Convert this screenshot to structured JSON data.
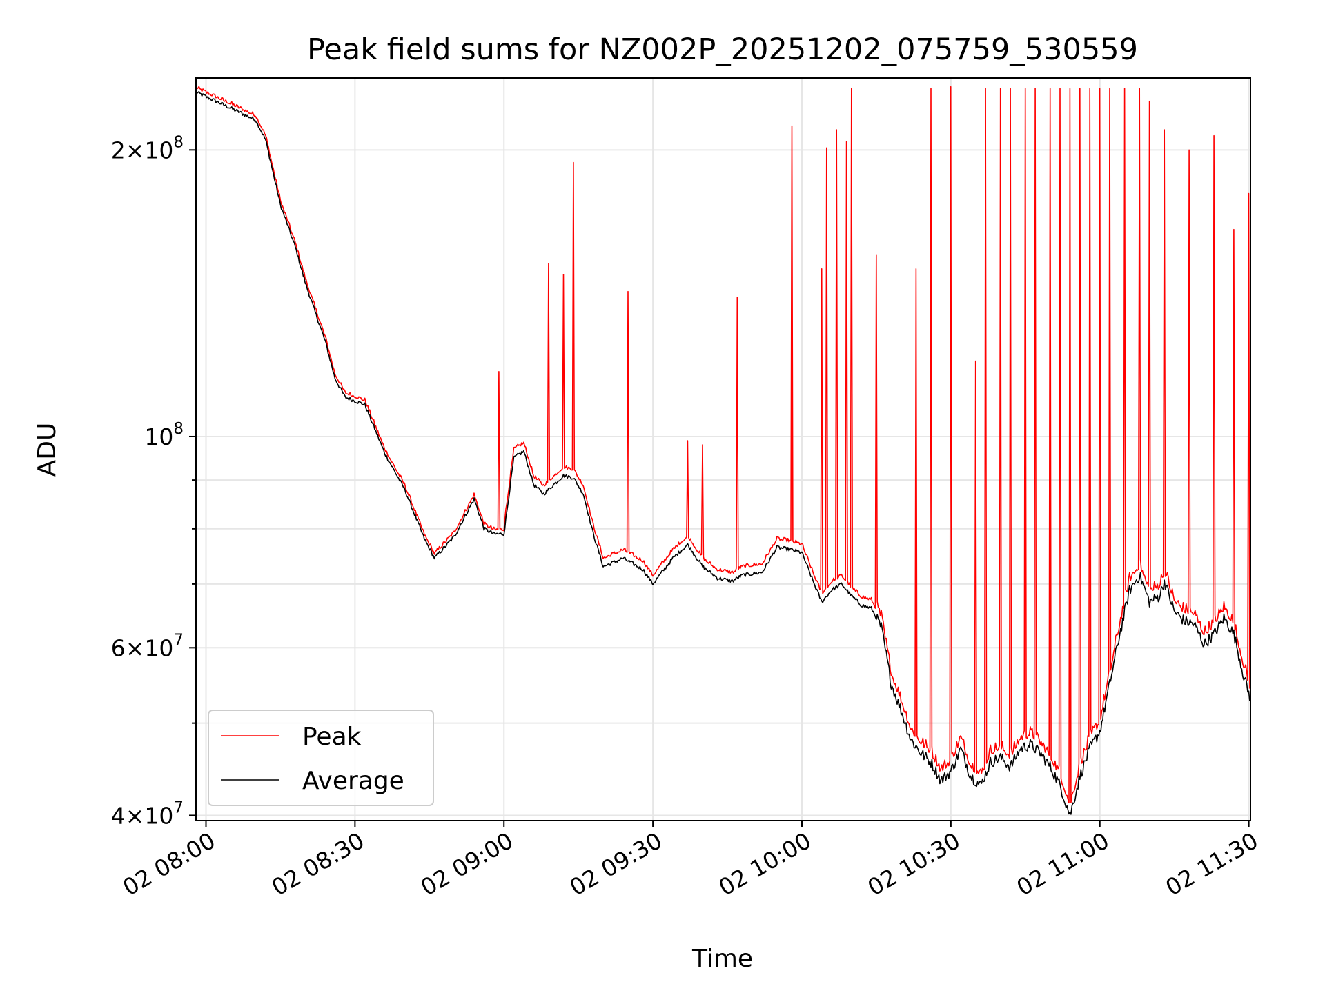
{
  "chart_data": {
    "type": "line",
    "title": "Peak field sums for NZ002P_20251202_075759_530559",
    "xlabel": "Time",
    "ylabel": "ADU",
    "yscale": "log",
    "ylim": [
      39500000,
      238000000
    ],
    "xlim": [
      "02 07:57:59",
      "02 11:30:20"
    ],
    "grid": true,
    "legend_position": "lower-left",
    "x_ticks": [
      "02 08:00",
      "02 08:30",
      "02 09:00",
      "02 09:30",
      "02 10:00",
      "02 10:30",
      "02 11:00",
      "02 11:30"
    ],
    "y_ticks": [
      {
        "value": 40000000,
        "mantissa": "4",
        "exp": "7"
      },
      {
        "value": 60000000,
        "mantissa": "6",
        "exp": "7"
      },
      {
        "value": 100000000,
        "mantissa": "10",
        "exp": "8"
      },
      {
        "value": 200000000,
        "mantissa": "2",
        "exp": "8"
      }
    ],
    "y_minor_ticks": [
      50000000,
      70000000,
      80000000,
      90000000
    ],
    "series": [
      {
        "name": "Peak",
        "color": "#ff0000",
        "baseline_offsets": [
          {
            "from": "02 07:57:59",
            "to": "02 09:00",
            "factor": 1.01
          },
          {
            "from": "02 09:00",
            "to": "02 10:15",
            "factor": 1.02
          },
          {
            "from": "02 10:15",
            "to": "02 11:30:20",
            "factor": 1.025
          }
        ],
        "spikes": [
          [
            "02 08:59",
            117000000
          ],
          [
            "02 09:09",
            152000000
          ],
          [
            "02 09:12",
            148000000
          ],
          [
            "02 09:14",
            194000000
          ],
          [
            "02 09:25",
            142000000
          ],
          [
            "02 09:37",
            99000000
          ],
          [
            "02 09:40",
            98000000
          ],
          [
            "02 09:47",
            140000000
          ],
          [
            "02 09:58",
            212000000
          ],
          [
            "02 10:04",
            150000000
          ],
          [
            "02 10:05",
            201000000
          ],
          [
            "02 10:07",
            210000000
          ],
          [
            "02 10:09",
            204000000
          ],
          [
            "02 10:10",
            232000000
          ],
          [
            "02 10:15",
            155000000
          ],
          [
            "02 10:23",
            150000000
          ],
          [
            "02 10:26",
            232000000
          ],
          [
            "02 10:30",
            233000000
          ],
          [
            "02 10:35",
            120000000
          ],
          [
            "02 10:37",
            232000000
          ],
          [
            "02 10:40",
            232000000
          ],
          [
            "02 10:42",
            232000000
          ],
          [
            "02 10:45",
            232000000
          ],
          [
            "02 10:47",
            232000000
          ],
          [
            "02 10:50",
            232000000
          ],
          [
            "02 10:52",
            232000000
          ],
          [
            "02 10:54",
            232000000
          ],
          [
            "02 10:56",
            232000000
          ],
          [
            "02 10:58",
            232000000
          ],
          [
            "02 11:00",
            232000000
          ],
          [
            "02 11:02",
            232000000
          ],
          [
            "02 11:05",
            232000000
          ],
          [
            "02 11:08",
            232000000
          ],
          [
            "02 11:10",
            225000000
          ],
          [
            "02 11:13",
            210000000
          ],
          [
            "02 11:18",
            200000000
          ],
          [
            "02 11:23",
            207000000
          ],
          [
            "02 11:27",
            165000000
          ],
          [
            "02 11:30",
            180000000
          ]
        ]
      },
      {
        "name": "Average",
        "color": "#000000",
        "points": [
          [
            "02 07:57:59",
            230000000
          ],
          [
            "02 08:02",
            225000000
          ],
          [
            "02 08:06",
            220000000
          ],
          [
            "02 08:10",
            215000000
          ],
          [
            "02 08:12",
            205000000
          ],
          [
            "02 08:15",
            175000000
          ],
          [
            "02 08:18",
            158000000
          ],
          [
            "02 08:20",
            145000000
          ],
          [
            "02 08:22",
            135000000
          ],
          [
            "02 08:24",
            126000000
          ],
          [
            "02 08:26",
            115000000
          ],
          [
            "02 08:28",
            110000000
          ],
          [
            "02 08:32",
            108000000
          ],
          [
            "02 08:36",
            96000000
          ],
          [
            "02 08:40",
            88000000
          ],
          [
            "02 08:44",
            78000000
          ],
          [
            "02 08:46",
            74500000
          ],
          [
            "02 08:50",
            78500000
          ],
          [
            "02 08:54",
            86000000
          ],
          [
            "02 08:56",
            80000000
          ],
          [
            "02 08:58",
            79000000
          ],
          [
            "02 09:00",
            79000000
          ],
          [
            "02 09:02",
            95000000
          ],
          [
            "02 09:04",
            96500000
          ],
          [
            "02 09:06",
            89000000
          ],
          [
            "02 09:08",
            87000000
          ],
          [
            "02 09:10",
            89000000
          ],
          [
            "02 09:12",
            91000000
          ],
          [
            "02 09:14",
            90500000
          ],
          [
            "02 09:16",
            87000000
          ],
          [
            "02 09:18",
            79000000
          ],
          [
            "02 09:20",
            73000000
          ],
          [
            "02 09:24",
            74500000
          ],
          [
            "02 09:28",
            72500000
          ],
          [
            "02 09:30",
            70000000
          ],
          [
            "02 09:34",
            74500000
          ],
          [
            "02 09:37",
            77000000
          ],
          [
            "02 09:40",
            73000000
          ],
          [
            "02 09:43",
            71000000
          ],
          [
            "02 09:46",
            70500000
          ],
          [
            "02 09:48",
            71500000
          ],
          [
            "02 09:52",
            72000000
          ],
          [
            "02 09:55",
            76500000
          ],
          [
            "02 09:58",
            76000000
          ],
          [
            "02 10:00",
            75500000
          ],
          [
            "02 10:02",
            71000000
          ],
          [
            "02 10:04",
            67000000
          ],
          [
            "02 10:06",
            69000000
          ],
          [
            "02 10:08",
            70000000
          ],
          [
            "02 10:10",
            68000000
          ],
          [
            "02 10:12",
            66500000
          ],
          [
            "02 10:14",
            66000000
          ],
          [
            "02 10:16",
            63000000
          ],
          [
            "02 10:18",
            55000000
          ],
          [
            "02 10:20",
            51500000
          ],
          [
            "02 10:22",
            48000000
          ],
          [
            "02 10:24",
            46500000
          ],
          [
            "02 10:26",
            45500000
          ],
          [
            "02 10:28",
            43500000
          ],
          [
            "02 10:30",
            44500000
          ],
          [
            "02 10:32",
            47000000
          ],
          [
            "02 10:34",
            44000000
          ],
          [
            "02 10:36",
            43000000
          ],
          [
            "02 10:38",
            45500000
          ],
          [
            "02 10:40",
            46000000
          ],
          [
            "02 10:42",
            45000000
          ],
          [
            "02 10:44",
            47000000
          ],
          [
            "02 10:46",
            47500000
          ],
          [
            "02 10:48",
            46500000
          ],
          [
            "02 10:50",
            45000000
          ],
          [
            "02 10:52",
            43000000
          ],
          [
            "02 10:54",
            40000000
          ],
          [
            "02 10:56",
            44000000
          ],
          [
            "02 10:58",
            47000000
          ],
          [
            "02 11:00",
            49000000
          ],
          [
            "02 11:02",
            55000000
          ],
          [
            "02 11:04",
            62000000
          ],
          [
            "02 11:06",
            69000000
          ],
          [
            "02 11:08",
            71500000
          ],
          [
            "02 11:10",
            67000000
          ],
          [
            "02 11:12",
            68000000
          ],
          [
            "02 11:13",
            70500000
          ],
          [
            "02 11:15",
            65500000
          ],
          [
            "02 11:17",
            64000000
          ],
          [
            "02 11:19",
            63500000
          ],
          [
            "02 11:21",
            60500000
          ],
          [
            "02 11:23",
            62000000
          ],
          [
            "02 11:25",
            64500000
          ],
          [
            "02 11:27",
            62000000
          ],
          [
            "02 11:29",
            56000000
          ],
          [
            "02 11:30:20",
            53000000
          ]
        ]
      }
    ]
  }
}
